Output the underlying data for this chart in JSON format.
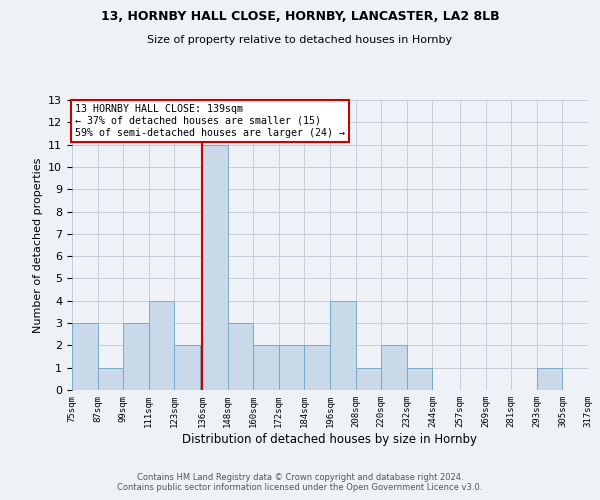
{
  "title1": "13, HORNBY HALL CLOSE, HORNBY, LANCASTER, LA2 8LB",
  "title2": "Size of property relative to detached houses in Hornby",
  "xlabel": "Distribution of detached houses by size in Hornby",
  "ylabel": "Number of detached properties",
  "bar_color": "#c9d9ea",
  "bar_edge_color": "#7aaac8",
  "grid_color": "#c5cdd8",
  "background_color": "#eef2f7",
  "vline_color": "#cc0000",
  "annotation_title": "13 HORNBY HALL CLOSE: 139sqm",
  "annotation_line2": "← 37% of detached houses are smaller (15)",
  "annotation_line3": "59% of semi-detached houses are larger (24) →",
  "annotation_box_color": "#ffffff",
  "annotation_border_color": "#cc0000",
  "bins": [
    75,
    87,
    99,
    111,
    123,
    136,
    148,
    160,
    172,
    184,
    196,
    208,
    220,
    232,
    244,
    257,
    269,
    281,
    293,
    305,
    317
  ],
  "counts": [
    3,
    1,
    3,
    4,
    2,
    11,
    3,
    2,
    2,
    2,
    4,
    1,
    2,
    1,
    0,
    0,
    0,
    0,
    1,
    0
  ],
  "tick_labels": [
    "75sqm",
    "87sqm",
    "99sqm",
    "111sqm",
    "123sqm",
    "136sqm",
    "148sqm",
    "160sqm",
    "172sqm",
    "184sqm",
    "196sqm",
    "208sqm",
    "220sqm",
    "232sqm",
    "244sqm",
    "257sqm",
    "269sqm",
    "281sqm",
    "293sqm",
    "305sqm",
    "317sqm"
  ],
  "ylim": [
    0,
    13
  ],
  "yticks": [
    0,
    1,
    2,
    3,
    4,
    5,
    6,
    7,
    8,
    9,
    10,
    11,
    12,
    13
  ],
  "footer1": "Contains HM Land Registry data © Crown copyright and database right 2024.",
  "footer2": "Contains public sector information licensed under the Open Government Licence v3.0."
}
